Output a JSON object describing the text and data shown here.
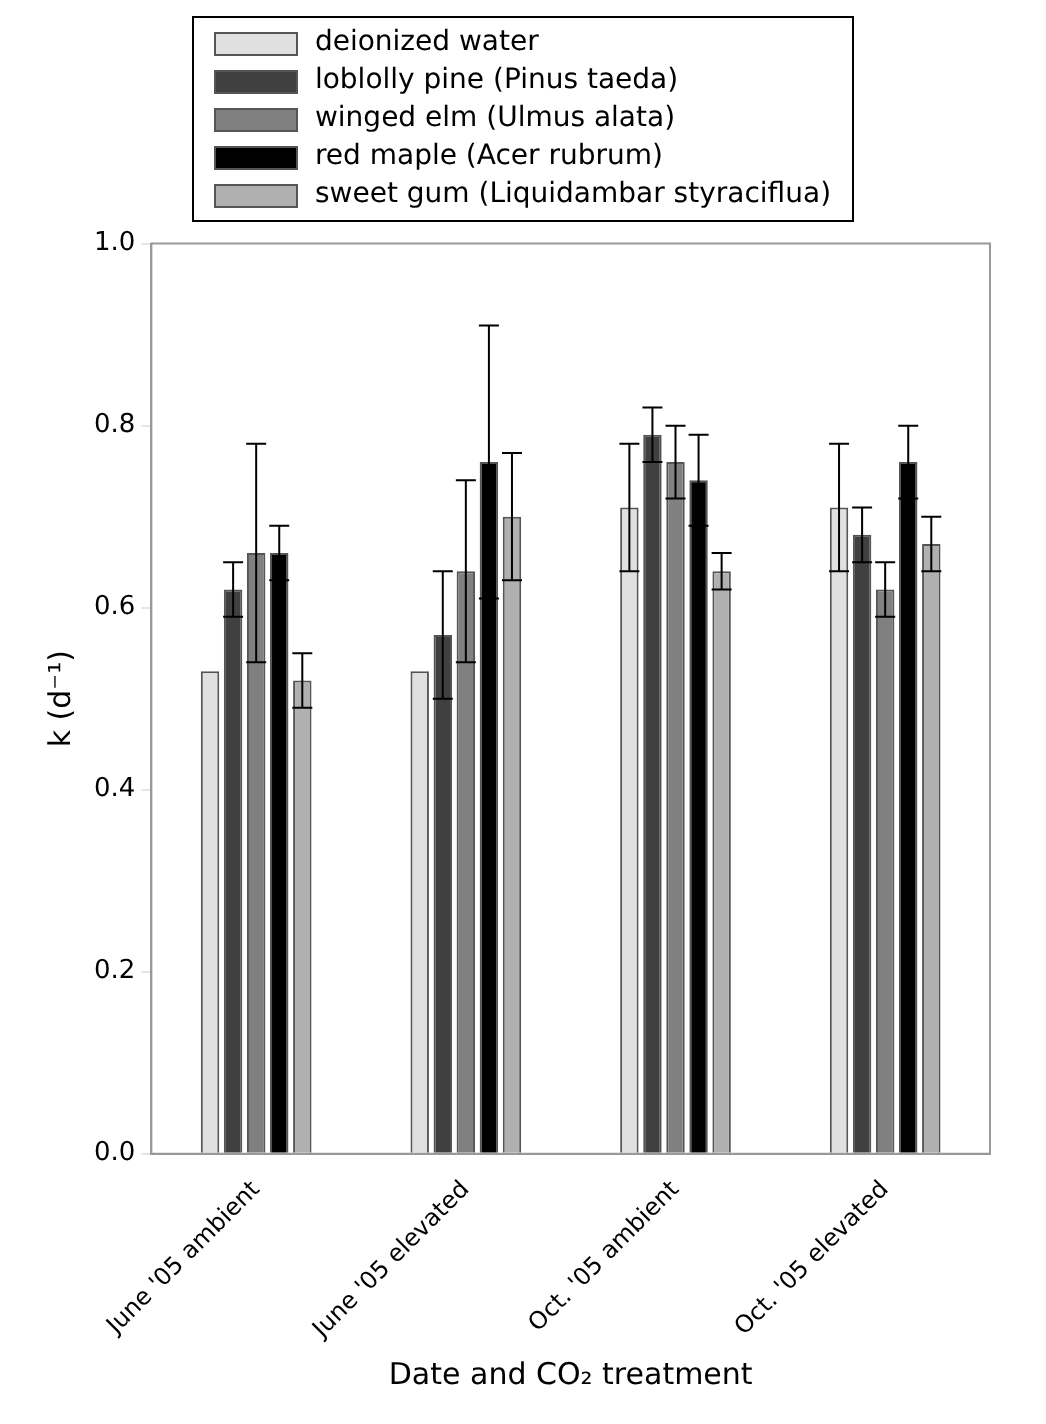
{
  "chart_data": {
    "type": "bar",
    "xlabel": "Date and CO₂ treatment",
    "ylabel": "k (d⁻¹)",
    "categories": [
      "June '05 ambient",
      "June '05 elevated",
      "Oct. '05 ambient",
      "Oct. '05 elevated"
    ],
    "series": [
      {
        "name": "deionized water",
        "color": "#e0e0e0",
        "values": [
          0.53,
          0.53,
          0.71,
          0.71
        ],
        "errors": [
          null,
          null,
          0.07,
          0.07
        ]
      },
      {
        "name": "loblolly pine (Pinus taeda)",
        "color": "#404040",
        "values": [
          0.62,
          0.57,
          0.79,
          0.68
        ],
        "errors": [
          0.03,
          0.07,
          0.03,
          0.03
        ]
      },
      {
        "name": "winged elm (Ulmus alata)",
        "color": "#808080",
        "values": [
          0.66,
          0.64,
          0.76,
          0.62
        ],
        "errors": [
          0.12,
          0.1,
          0.04,
          0.03
        ]
      },
      {
        "name": "red maple (Acer rubrum)",
        "color": "#000000",
        "values": [
          0.66,
          0.76,
          0.74,
          0.76
        ],
        "errors": [
          0.03,
          0.15,
          0.05,
          0.04
        ]
      },
      {
        "name": "sweet gum (Liquidambar styraciflua)",
        "color": "#b0b0b0",
        "values": [
          0.52,
          0.7,
          0.64,
          0.67
        ],
        "errors": [
          0.03,
          0.07,
          0.02,
          0.03
        ]
      }
    ],
    "ylim": [
      0,
      1
    ],
    "yticks": [
      {
        "value": 0,
        "label": "0.0"
      },
      {
        "value": 0.2,
        "label": "0.2"
      },
      {
        "value": 0.4,
        "label": "0.4"
      },
      {
        "value": 0.6,
        "label": "0.6"
      },
      {
        "value": 0.8,
        "label": "0.8"
      },
      {
        "value": 1,
        "label": "1.0"
      }
    ],
    "grid": false,
    "legend": "top"
  }
}
